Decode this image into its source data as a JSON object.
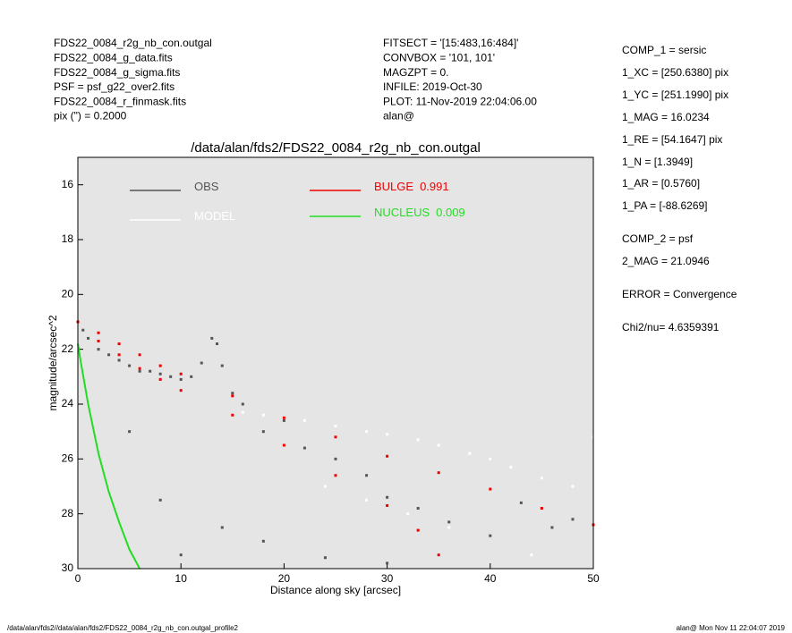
{
  "header": {
    "left": [
      "FDS22_0084_r2g_nb_con.outgal",
      "FDS22_0084_g_data.fits",
      "FDS22_0084_g_sigma.fits",
      "PSF     = psf_g22_over2.fits",
      "FDS22_0084_r_finmask.fits",
      "pix (\") =  0.2000"
    ],
    "middle": [
      "FITSECT = '[15:483,16:484]'",
      "CONVBOX = '101, 101'",
      "MAGZPT  =              0.",
      "INFILE: 2019-Oct-30",
      "PLOT: 11-Nov-2019 22:04:06.00",
      "alan@"
    ],
    "right": [
      "COMP_1  = sersic",
      "1_XC    = [250.6380] pix",
      "1_YC    = [251.1990] pix",
      "1_MAG   = 16.0234",
      "1_RE    = [54.1647] pix",
      "1_N     = [1.3949]",
      "1_AR    = [0.5760]",
      "1_PA    = [-88.6269]",
      "COMP_2  = psf",
      "2_MAG   = 21.0946",
      "ERROR   = Convergence",
      "Chi2/nu=       4.6359391"
    ]
  },
  "footer": {
    "left": "/data/alan/fds2//data/alan/fds2/FDS22_0084_r2g_nb_con.outgal_profile2",
    "right": "alan@  Mon Nov 11 22:04:07 2019"
  },
  "chart_data": {
    "type": "scatter",
    "title": "/data/alan/fds2/FDS22_0084_r2g_nb_con.outgal",
    "x_label": "Distance along sky [arcsec]",
    "y_label": "magnitude/arcsec^2",
    "xlim": [
      0,
      50
    ],
    "xticks": [
      0,
      10,
      20,
      30,
      40,
      50
    ],
    "ylim": [
      30,
      15
    ],
    "yticks": [
      16,
      18,
      20,
      22,
      24,
      26,
      28,
      30
    ],
    "background": "#e5e5e5",
    "series": [
      {
        "name": "OBS",
        "color": "#555555",
        "style": "points",
        "x": [
          0.5,
          1,
          2,
          3,
          4,
          5,
          6,
          7,
          8,
          9,
          10,
          11,
          12,
          13,
          13.5,
          14,
          15,
          16,
          18,
          20,
          22,
          25,
          28,
          30,
          33,
          36,
          40,
          43,
          46,
          48,
          5,
          8,
          10,
          14,
          18,
          24,
          30
        ],
        "values": [
          21.3,
          21.6,
          22.0,
          22.2,
          22.4,
          22.6,
          22.8,
          22.8,
          22.9,
          23.0,
          23.1,
          23.0,
          22.5,
          21.6,
          21.8,
          22.6,
          23.6,
          24.0,
          25.0,
          24.6,
          25.6,
          26.0,
          26.6,
          27.4,
          27.8,
          28.3,
          28.8,
          27.6,
          28.5,
          28.2,
          25.0,
          27.5,
          29.5,
          28.5,
          29.0,
          29.6,
          29.8
        ]
      },
      {
        "name": "MODEL",
        "color": "#ffffff",
        "style": "points",
        "x": [
          16,
          18,
          20,
          22,
          25,
          28,
          30,
          33,
          35,
          38,
          40,
          42,
          45,
          48,
          50,
          24,
          28,
          32,
          36,
          44
        ],
        "values": [
          24.3,
          24.4,
          24.5,
          24.6,
          24.8,
          25.0,
          25.1,
          25.3,
          25.5,
          25.8,
          26.0,
          26.3,
          26.7,
          27.0,
          25.2,
          27.0,
          27.5,
          28.0,
          28.5,
          29.5
        ]
      },
      {
        "name": "BULGE",
        "fraction": 0.991,
        "color": "#ee0000",
        "style": "points",
        "x": [
          0,
          2,
          4,
          6,
          8,
          10,
          15,
          20,
          25,
          30,
          35,
          40,
          45,
          50,
          2,
          4,
          6,
          8,
          10,
          15,
          20,
          25,
          30,
          33,
          35
        ],
        "values": [
          21.0,
          21.4,
          21.8,
          22.2,
          22.6,
          22.9,
          23.7,
          24.5,
          25.2,
          25.9,
          26.5,
          27.1,
          27.8,
          28.4,
          21.7,
          22.2,
          22.7,
          23.1,
          23.5,
          24.4,
          25.5,
          26.6,
          27.7,
          28.6,
          29.5
        ]
      },
      {
        "name": "NUCLEUS",
        "fraction": 0.009,
        "color": "#22dd22",
        "style": "line",
        "x": [
          0,
          0.3,
          1,
          2,
          3,
          4,
          5,
          6
        ],
        "values": [
          21.8,
          22.5,
          24.0,
          25.8,
          27.2,
          28.3,
          29.3,
          30.0
        ]
      }
    ]
  }
}
